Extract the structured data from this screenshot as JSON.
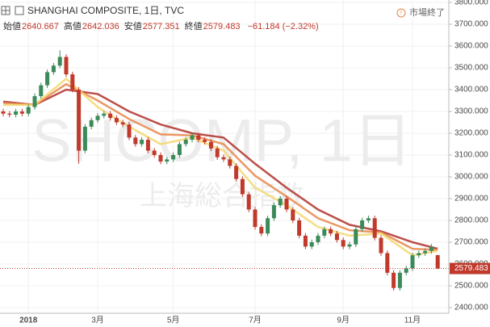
{
  "chart_data": {
    "type": "candlestick",
    "title": "SHANGHAI COMPOSITE, 1日, TVC",
    "ohlc_labels": [
      "始値",
      "高値",
      "安値",
      "終値"
    ],
    "change": "−61.184 (−2.32%)",
    "status": "市場終了",
    "watermark": "SHCOMP, 1日",
    "watermark_sub": "上海総合指数",
    "up_color": "#3b8a5a",
    "down_color": "#c0392b",
    "categories": [
      null,
      null,
      null,
      null,
      "2018",
      null,
      null,
      null,
      null,
      null,
      null,
      null,
      null,
      null,
      null,
      "3月",
      null,
      null,
      null,
      null,
      null,
      null,
      null,
      null,
      null,
      null,
      null,
      "5月",
      null,
      null,
      null,
      null,
      null,
      null,
      null,
      null,
      null,
      null,
      null,
      null,
      "7月",
      null,
      null,
      null,
      null,
      null,
      null,
      null,
      null,
      null,
      null,
      null,
      null,
      null,
      "9月",
      null,
      null,
      null,
      null,
      null,
      null,
      null,
      null,
      null,
      null,
      "11月",
      null,
      null,
      null,
      null
    ],
    "open": [
      3300,
      3290,
      3285,
      3300,
      3290,
      3320,
      3370,
      3420,
      3480,
      3510,
      3550,
      3470,
      3400,
      3120,
      3230,
      3260,
      3280,
      3290,
      3270,
      3250,
      3240,
      3180,
      3150,
      3170,
      3120,
      3100,
      3070,
      3080,
      3100,
      3150,
      3170,
      3190,
      3170,
      3160,
      3130,
      3090,
      3080,
      3050,
      2990,
      2920,
      2850,
      2770,
      2740,
      2810,
      2870,
      2900,
      2850,
      2800,
      2730,
      2680,
      2700,
      2730,
      2760,
      2740,
      2710,
      2680,
      2690,
      2760,
      2800,
      2810,
      2720,
      2650,
      2560,
      2490,
      2560,
      2580,
      2640,
      2650,
      2660,
      2640.667
    ],
    "high": [
      3312,
      3302,
      3312,
      3312,
      3332,
      3382,
      3432,
      3492,
      3522,
      3580,
      3562,
      3482,
      3412,
      3242,
      3272,
      3292,
      3302,
      3302,
      3282,
      3262,
      3252,
      3192,
      3182,
      3182,
      3132,
      3112,
      3092,
      3112,
      3162,
      3182,
      3202,
      3202,
      3182,
      3172,
      3142,
      3102,
      3092,
      3062,
      3002,
      2932,
      2862,
      2782,
      2822,
      2882,
      2912,
      2912,
      2862,
      2812,
      2742,
      2712,
      2742,
      2772,
      2772,
      2752,
      2722,
      2702,
      2772,
      2812,
      2822,
      2822,
      2732,
      2662,
      2572,
      2572,
      2592,
      2652,
      2662,
      2672,
      2692,
      2642.036
    ],
    "low": [
      3278,
      3273,
      3273,
      3278,
      3278,
      3308,
      3358,
      3408,
      3468,
      3498,
      3458,
      3388,
      3060,
      3108,
      3218,
      3248,
      3268,
      3258,
      3238,
      3228,
      3168,
      3138,
      3138,
      3108,
      3088,
      3058,
      3058,
      3068,
      3088,
      3138,
      3158,
      3158,
      3148,
      3118,
      3078,
      3068,
      3038,
      2978,
      2908,
      2838,
      2758,
      2728,
      2728,
      2798,
      2858,
      2838,
      2788,
      2718,
      2668,
      2668,
      2688,
      2718,
      2728,
      2698,
      2668,
      2668,
      2678,
      2748,
      2788,
      2708,
      2638,
      2548,
      2478,
      2478,
      2548,
      2568,
      2628,
      2638,
      2648,
      2577.351
    ],
    "close": [
      3290,
      3285,
      3300,
      3290,
      3320,
      3370,
      3420,
      3480,
      3510,
      3550,
      3470,
      3400,
      3120,
      3230,
      3260,
      3280,
      3290,
      3270,
      3250,
      3240,
      3180,
      3150,
      3170,
      3120,
      3100,
      3070,
      3080,
      3100,
      3150,
      3170,
      3190,
      3170,
      3160,
      3130,
      3090,
      3080,
      3050,
      2990,
      2920,
      2850,
      2770,
      2740,
      2810,
      2870,
      2900,
      2850,
      2800,
      2730,
      2680,
      2700,
      2730,
      2760,
      2740,
      2710,
      2680,
      2690,
      2760,
      2800,
      2810,
      2720,
      2650,
      2560,
      2490,
      2560,
      2580,
      2640,
      2650,
      2660,
      2680,
      2579.483
    ],
    "ribbon_x": [
      0,
      5,
      10,
      15,
      20,
      25,
      30,
      35,
      40,
      45,
      50,
      55,
      60,
      65,
      69
    ],
    "ribbon": [
      {
        "color": "#b0302a",
        "values": [
          3345,
          3330,
          3400,
          3380,
          3300,
          3240,
          3200,
          3180,
          3060,
          2950,
          2850,
          2780,
          2750,
          2700,
          2670
        ]
      },
      {
        "color": "#e8864a",
        "values": [
          3338,
          3330,
          3425,
          3350,
          3265,
          3195,
          3190,
          3150,
          3005,
          2910,
          2810,
          2755,
          2745,
          2670,
          2665
        ]
      },
      {
        "color": "#f5d76e",
        "values": [
          3330,
          3330,
          3450,
          3320,
          3230,
          3150,
          3180,
          3120,
          2950,
          2870,
          2770,
          2730,
          2740,
          2640,
          2660
        ]
      }
    ],
    "ylim": [
      2400,
      3800
    ],
    "yticks": [
      {
        "value": 2400,
        "label": "2400.000"
      },
      {
        "value": 2500,
        "label": "2500.000"
      },
      {
        "value": 2600,
        "label": "2600.000"
      },
      {
        "value": 2700,
        "label": "2700.000"
      },
      {
        "value": 2800,
        "label": "2800.000"
      },
      {
        "value": 2900,
        "label": "2900.000"
      },
      {
        "value": 3000,
        "label": "3000.000"
      },
      {
        "value": 3100,
        "label": "3100.000"
      },
      {
        "value": 3200,
        "label": "3200.000"
      },
      {
        "value": 3300,
        "label": "3300.000"
      },
      {
        "value": 3400,
        "label": "3400.000"
      },
      {
        "value": 3500,
        "label": "3500.000"
      },
      {
        "value": 3600,
        "label": "3600.000"
      },
      {
        "value": 3700,
        "label": "3700.000"
      },
      {
        "value": 3800,
        "label": "3800.000"
      }
    ],
    "grid": true
  }
}
